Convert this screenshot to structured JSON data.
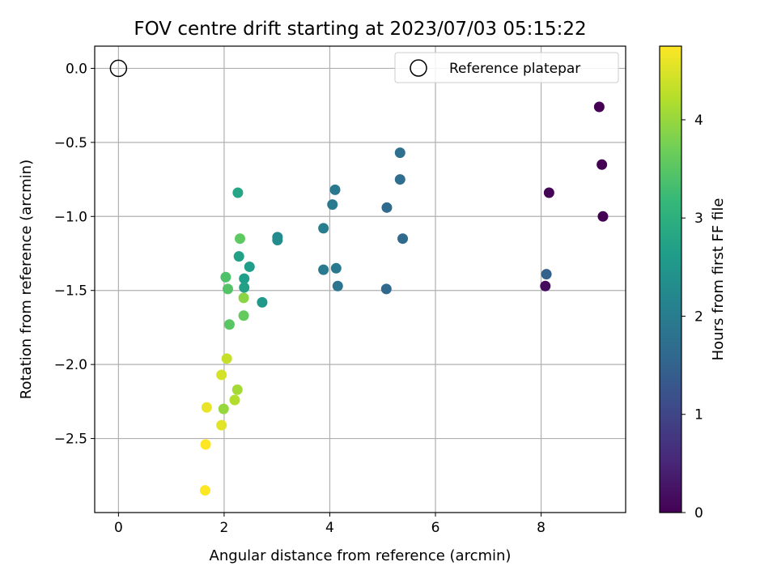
{
  "chart_data": {
    "type": "scatter",
    "title": "FOV centre drift starting at 2023/07/03 05:15:22",
    "xlabel": "Angular distance from reference (arcmin)",
    "ylabel": "Rotation from reference (arcmin)",
    "xlim": [
      -0.45,
      9.6
    ],
    "ylim": [
      -3.0,
      0.15
    ],
    "x_ticks": [
      0,
      2,
      4,
      6,
      8
    ],
    "y_ticks": [
      0.0,
      -0.5,
      -1.0,
      -1.5,
      -2.0,
      -2.5
    ],
    "x_tick_labels": [
      "0",
      "2",
      "4",
      "6",
      "8"
    ],
    "y_tick_labels": [
      "0.0",
      "−0.5",
      "−1.0",
      "−1.5",
      "−2.0",
      "−2.5"
    ],
    "grid": true,
    "legend": {
      "position": "top-right",
      "label": "Reference platepar"
    },
    "reference_point": {
      "x": 0,
      "y": 0
    },
    "colorbar": {
      "label": "Hours from first FF file",
      "range": [
        0,
        4.75
      ],
      "ticks": [
        0,
        1,
        2,
        3,
        4
      ],
      "tick_labels": [
        "0",
        "1",
        "2",
        "3",
        "4"
      ],
      "colormap": "viridis",
      "stops": [
        "#440154",
        "#482878",
        "#3e4989",
        "#31688e",
        "#26828e",
        "#1f9e89",
        "#35b779",
        "#6ece58",
        "#b5de2b",
        "#fde725"
      ]
    },
    "points": [
      {
        "x": 9.1,
        "y": -0.26,
        "c": 0.0
      },
      {
        "x": 9.15,
        "y": -0.65,
        "c": 0.0
      },
      {
        "x": 9.17,
        "y": -1.0,
        "c": 0.0
      },
      {
        "x": 8.15,
        "y": -0.84,
        "c": 0.05
      },
      {
        "x": 8.08,
        "y": -1.47,
        "c": 0.15
      },
      {
        "x": 8.1,
        "y": -1.39,
        "c": 1.5
      },
      {
        "x": 5.33,
        "y": -0.57,
        "c": 1.75
      },
      {
        "x": 5.33,
        "y": -0.75,
        "c": 1.7
      },
      {
        "x": 5.08,
        "y": -0.94,
        "c": 1.65
      },
      {
        "x": 5.38,
        "y": -1.15,
        "c": 1.65
      },
      {
        "x": 5.07,
        "y": -1.49,
        "c": 1.6
      },
      {
        "x": 4.1,
        "y": -0.82,
        "c": 1.9
      },
      {
        "x": 4.05,
        "y": -0.92,
        "c": 1.95
      },
      {
        "x": 3.88,
        "y": -1.08,
        "c": 2.0
      },
      {
        "x": 3.88,
        "y": -1.36,
        "c": 1.95
      },
      {
        "x": 4.12,
        "y": -1.35,
        "c": 1.9
      },
      {
        "x": 4.15,
        "y": -1.47,
        "c": 1.85
      },
      {
        "x": 3.01,
        "y": -1.14,
        "c": 2.25
      },
      {
        "x": 3.01,
        "y": -1.16,
        "c": 2.3
      },
      {
        "x": 2.72,
        "y": -1.58,
        "c": 2.55
      },
      {
        "x": 2.26,
        "y": -0.84,
        "c": 2.8
      },
      {
        "x": 2.28,
        "y": -1.27,
        "c": 2.7
      },
      {
        "x": 2.48,
        "y": -1.34,
        "c": 2.65
      },
      {
        "x": 2.38,
        "y": -1.42,
        "c": 2.65
      },
      {
        "x": 2.38,
        "y": -1.48,
        "c": 2.7
      },
      {
        "x": 2.3,
        "y": -1.15,
        "c": 3.55
      },
      {
        "x": 2.03,
        "y": -1.41,
        "c": 3.4
      },
      {
        "x": 2.07,
        "y": -1.49,
        "c": 3.45
      },
      {
        "x": 2.37,
        "y": -1.55,
        "c": 3.9
      },
      {
        "x": 2.37,
        "y": -1.67,
        "c": 3.6
      },
      {
        "x": 2.1,
        "y": -1.73,
        "c": 3.5
      },
      {
        "x": 2.05,
        "y": -1.96,
        "c": 4.35
      },
      {
        "x": 1.95,
        "y": -2.07,
        "c": 4.45
      },
      {
        "x": 2.25,
        "y": -2.17,
        "c": 4.1
      },
      {
        "x": 2.2,
        "y": -2.24,
        "c": 4.2
      },
      {
        "x": 1.99,
        "y": -2.3,
        "c": 4.0
      },
      {
        "x": 1.67,
        "y": -2.29,
        "c": 4.6
      },
      {
        "x": 1.95,
        "y": -2.41,
        "c": 4.55
      },
      {
        "x": 1.65,
        "y": -2.54,
        "c": 4.75
      },
      {
        "x": 1.64,
        "y": -2.85,
        "c": 4.75
      }
    ]
  }
}
